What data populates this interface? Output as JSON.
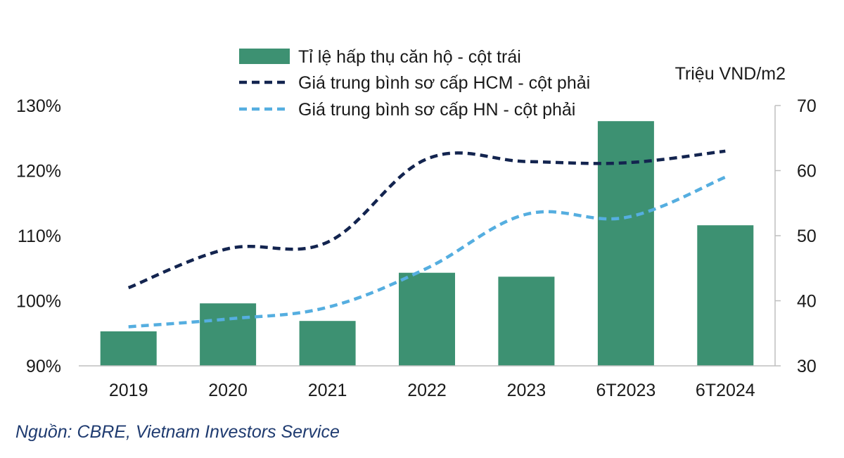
{
  "chart_data": {
    "type": "bar",
    "categories": [
      "2019",
      "2020",
      "2021",
      "2022",
      "2023",
      "6T2023",
      "6T2024"
    ],
    "series": [
      {
        "name": "Tỉ lệ hấp thụ căn hộ - cột trái",
        "type": "bar",
        "axis": "left",
        "color": "#3d9172",
        "values": [
          95.3,
          99.6,
          96.9,
          104.3,
          103.7,
          127.6,
          111.6
        ]
      },
      {
        "name": "Giá trung bình sơ cấp HCM - cột phải",
        "type": "line",
        "axis": "right",
        "line_style": "dashed",
        "color": "#13244f",
        "values": [
          42.0,
          48.0,
          49.0,
          61.8,
          61.4,
          61.2,
          63.0
        ]
      },
      {
        "name": "Giá trung bình sơ cấp HN - cột phải",
        "type": "line",
        "axis": "right",
        "line_style": "dashed",
        "color": "#55aee0",
        "values": [
          36.0,
          37.2,
          39.0,
          45.0,
          53.3,
          52.8,
          59.0
        ]
      }
    ],
    "left_axis": {
      "ylim": [
        90,
        130
      ],
      "ticks": [
        "90%",
        "100%",
        "110%",
        "120%",
        "130%"
      ]
    },
    "right_axis": {
      "ylim": [
        30,
        70
      ],
      "ticks": [
        "30",
        "40",
        "50",
        "60",
        "70"
      ],
      "unit_label": "Triệu VND/m2"
    },
    "legend_position": "top-center",
    "grid": false,
    "source": "Nguồn: CBRE, Vietnam Investors Service"
  }
}
